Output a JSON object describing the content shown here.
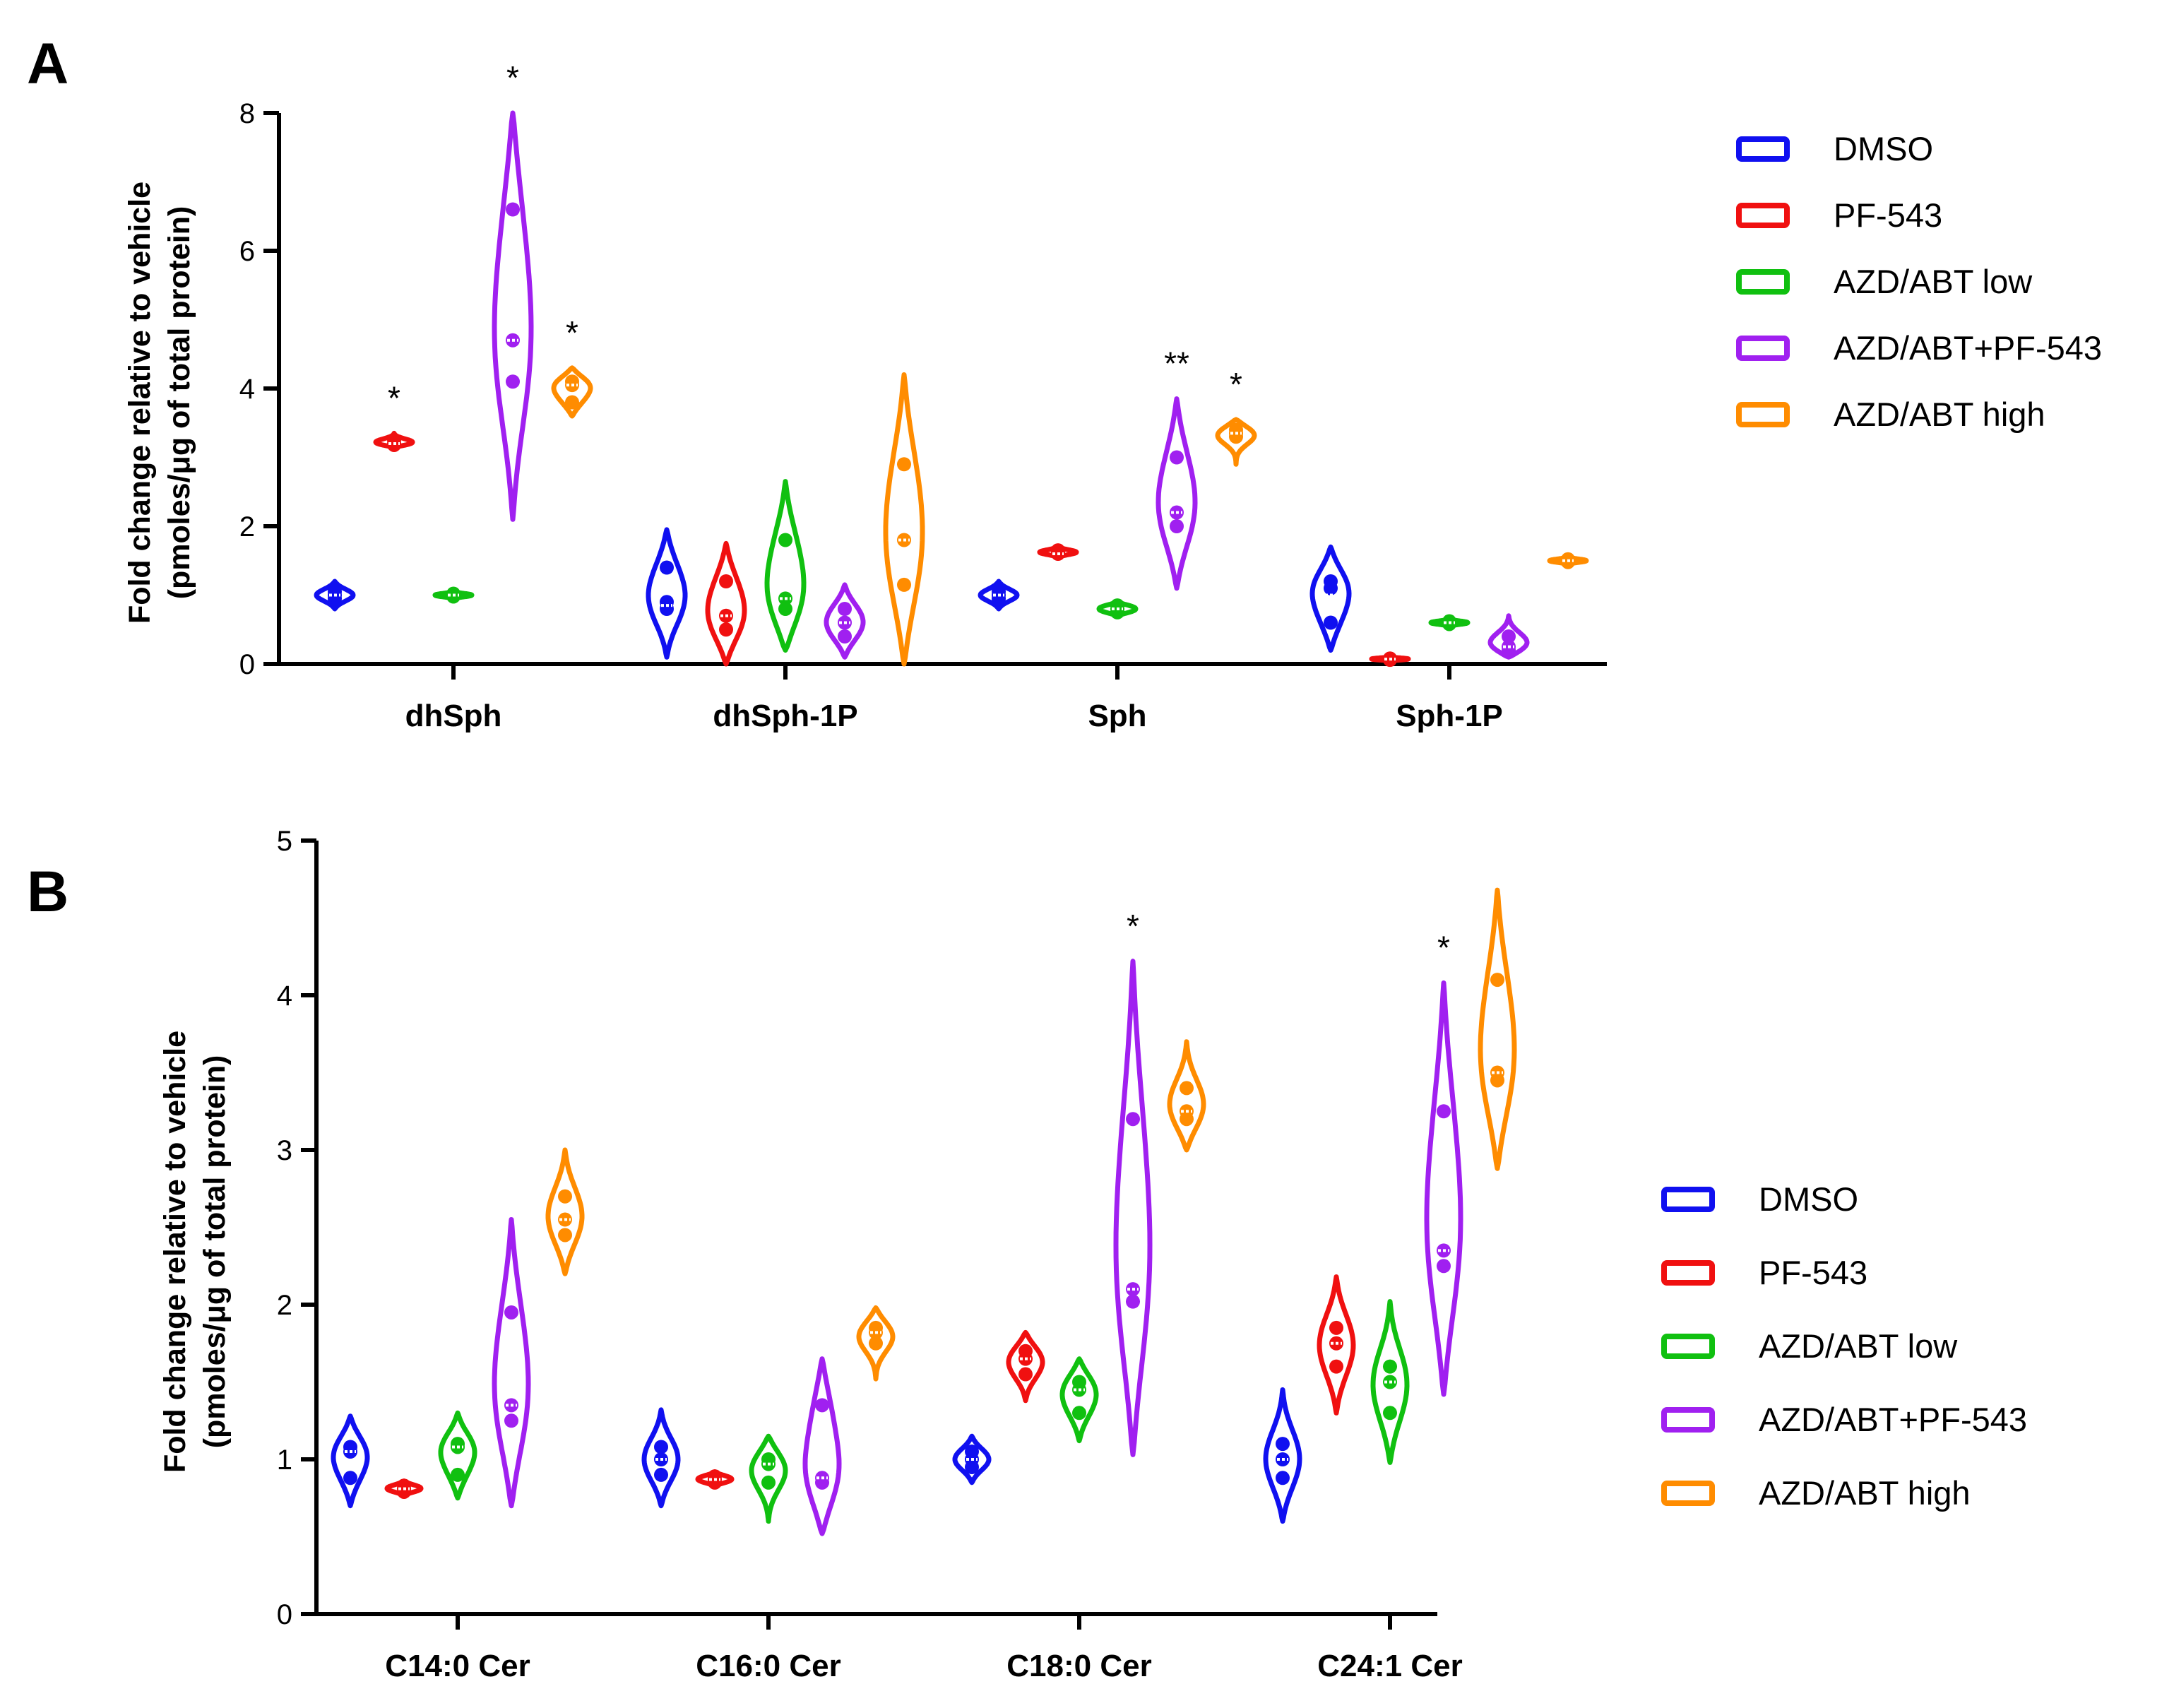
{
  "panels": [
    {
      "label": "A",
      "ylabel_line1": "Fold change relative to vehicle",
      "ylabel_line2": "(pmoles/μg of total protein)",
      "ylim": [
        0,
        8
      ],
      "yticks": [
        "0",
        "2",
        "4",
        "6",
        "8"
      ],
      "categories": [
        "dhSph",
        "dhSph-1P",
        "Sph",
        "Sph-1P"
      ]
    },
    {
      "label": "B",
      "ylabel_line1": "Fold change relative to vehicle",
      "ylabel_line2": "(pmoles/μg of total protein)",
      "ylim": [
        0,
        5
      ],
      "yticks": [
        "0",
        "1",
        "2",
        "3",
        "4",
        "5"
      ],
      "categories": [
        "C14:0 Cer",
        "C16:0 Cer",
        "C18:0 Cer",
        "C24:1 Cer"
      ]
    }
  ],
  "legend": [
    {
      "label": "DMSO",
      "color": "#1010f0"
    },
    {
      "label": "PF-543",
      "color": "#f01010"
    },
    {
      "label": "AZD/ABT low",
      "color": "#10c010"
    },
    {
      "label": "AZD/ABT+PF-543",
      "color": "#a020f0"
    },
    {
      "label": "AZD/ABT high",
      "color": "#ff8c00"
    }
  ],
  "chart_data": [
    {
      "type": "violin",
      "title": "A",
      "xlabel": "",
      "ylabel": "Fold change relative to vehicle (pmoles/μg of total protein)",
      "ylim": [
        0,
        8
      ],
      "categories": [
        "dhSph",
        "dhSph-1P",
        "Sph",
        "Sph-1P"
      ],
      "series": [
        {
          "name": "DMSO",
          "color": "#1010f0",
          "min": [
            0.8,
            0.1,
            0.8,
            0.2
          ],
          "max": [
            1.2,
            1.95,
            1.2,
            1.7
          ],
          "median": [
            1.0,
            0.85,
            1.0,
            1.0
          ],
          "points": [
            [
              0.95,
              1.0,
              1.05
            ],
            [
              0.8,
              0.9,
              1.4
            ],
            [
              0.95,
              1.0,
              1.05
            ],
            [
              0.6,
              1.1,
              1.2
            ]
          ],
          "significance": [
            "",
            "",
            "",
            ""
          ]
        },
        {
          "name": "PF-543",
          "color": "#f01010",
          "min": [
            3.15,
            0.0,
            1.55,
            0.05
          ],
          "max": [
            3.35,
            1.75,
            1.7,
            0.1
          ],
          "median": [
            3.2,
            0.7,
            1.6,
            0.07
          ],
          "points": [
            [
              3.18,
              3.2,
              3.25
            ],
            [
              0.5,
              0.7,
              1.2
            ],
            [
              1.6,
              1.62,
              1.65
            ],
            [
              0.06,
              0.07,
              0.08
            ]
          ],
          "significance": [
            "*",
            "",
            "",
            ""
          ]
        },
        {
          "name": "AZD/ABT low",
          "color": "#10c010",
          "min": [
            0.95,
            0.2,
            0.7,
            0.55
          ],
          "max": [
            1.05,
            2.65,
            0.9,
            0.65
          ],
          "median": [
            1.0,
            0.95,
            0.8,
            0.6
          ],
          "points": [
            [
              0.98,
              1.0,
              1.02
            ],
            [
              0.8,
              0.95,
              1.8
            ],
            [
              0.75,
              0.8,
              0.85
            ],
            [
              0.58,
              0.6,
              0.62
            ]
          ],
          "significance": [
            "",
            "",
            "",
            ""
          ]
        },
        {
          "name": "AZD/ABT+PF-543",
          "color": "#a020f0",
          "min": [
            2.1,
            0.1,
            1.1,
            0.1
          ],
          "max": [
            8.0,
            1.15,
            3.85,
            0.7
          ],
          "median": [
            4.7,
            0.6,
            2.2,
            0.25
          ],
          "points": [
            [
              4.1,
              4.7,
              6.6
            ],
            [
              0.4,
              0.6,
              0.8
            ],
            [
              2.0,
              2.2,
              3.0
            ],
            [
              0.2,
              0.25,
              0.4
            ]
          ],
          "significance": [
            "*",
            "",
            "**",
            ""
          ]
        },
        {
          "name": "AZD/ABT high",
          "color": "#ff8c00",
          "min": [
            3.6,
            0.0,
            2.9,
            1.45
          ],
          "max": [
            4.3,
            4.2,
            3.55,
            1.55
          ],
          "median": [
            4.05,
            1.8,
            3.35,
            1.5
          ],
          "points": [
            [
              3.8,
              4.05,
              4.1
            ],
            [
              1.15,
              1.8,
              2.9
            ],
            [
              3.3,
              3.35,
              3.4
            ],
            [
              1.48,
              1.5,
              1.52
            ]
          ],
          "significance": [
            "*",
            "",
            "*",
            ""
          ]
        }
      ]
    },
    {
      "type": "violin",
      "title": "B",
      "xlabel": "",
      "ylabel": "Fold change relative to vehicle (pmoles/μg of total protein)",
      "ylim": [
        0,
        5
      ],
      "categories": [
        "C14:0 Cer",
        "C16:0 Cer",
        "C18:0 Cer",
        "C24:1 Cer"
      ],
      "series": [
        {
          "name": "DMSO",
          "color": "#1010f0",
          "min": [
            0.7,
            0.7,
            0.85,
            0.6
          ],
          "max": [
            1.28,
            1.32,
            1.15,
            1.45
          ],
          "median": [
            1.05,
            1.0,
            1.0,
            1.0
          ],
          "points": [
            [
              0.88,
              1.05,
              1.08
            ],
            [
              0.9,
              1.0,
              1.08
            ],
            [
              0.95,
              1.0,
              1.05
            ],
            [
              0.88,
              1.0,
              1.1
            ]
          ],
          "significance": [
            "",
            "",
            "",
            ""
          ]
        },
        {
          "name": "PF-543",
          "color": "#f01010",
          "min": [
            0.77,
            0.83,
            1.38,
            1.3
          ],
          "max": [
            0.86,
            0.92,
            1.82,
            2.18
          ],
          "median": [
            0.81,
            0.87,
            1.65,
            1.75
          ],
          "points": [
            [
              0.79,
              0.81,
              0.83
            ],
            [
              0.85,
              0.87,
              0.89
            ],
            [
              1.55,
              1.65,
              1.7
            ],
            [
              1.6,
              1.75,
              1.85
            ]
          ],
          "significance": [
            "",
            "",
            "",
            ""
          ]
        },
        {
          "name": "AZD/ABT low",
          "color": "#10c010",
          "min": [
            0.75,
            0.6,
            1.12,
            0.98
          ],
          "max": [
            1.3,
            1.15,
            1.65,
            2.02
          ],
          "median": [
            1.08,
            0.97,
            1.45,
            1.5
          ],
          "points": [
            [
              0.9,
              1.08,
              1.1
            ],
            [
              0.85,
              0.97,
              1.0
            ],
            [
              1.3,
              1.45,
              1.5
            ],
            [
              1.3,
              1.5,
              1.6
            ]
          ],
          "significance": [
            "",
            "",
            "",
            ""
          ]
        },
        {
          "name": "AZD/ABT+PF-543",
          "color": "#a020f0",
          "min": [
            0.7,
            0.52,
            1.03,
            1.42
          ],
          "max": [
            2.55,
            1.65,
            4.22,
            4.08
          ],
          "median": [
            1.35,
            0.88,
            2.1,
            2.35
          ],
          "points": [
            [
              1.25,
              1.35,
              1.95
            ],
            [
              0.85,
              0.88,
              1.35
            ],
            [
              2.02,
              2.1,
              3.2
            ],
            [
              2.25,
              2.35,
              3.25
            ]
          ],
          "significance": [
            "",
            "",
            "*",
            "*"
          ]
        },
        {
          "name": "AZD/ABT high",
          "color": "#ff8c00",
          "min": [
            2.2,
            1.52,
            3.0,
            2.88
          ],
          "max": [
            3.0,
            1.98,
            3.7,
            4.68
          ],
          "median": [
            2.55,
            1.82,
            3.25,
            3.5
          ],
          "points": [
            [
              2.45,
              2.55,
              2.7
            ],
            [
              1.75,
              1.82,
              1.85
            ],
            [
              3.2,
              3.25,
              3.4
            ],
            [
              3.45,
              3.5,
              4.1
            ]
          ],
          "significance": [
            "",
            "",
            "",
            ""
          ]
        }
      ]
    }
  ]
}
